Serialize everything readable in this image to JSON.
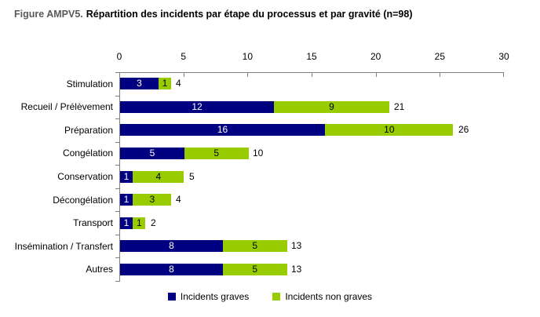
{
  "title": {
    "prefix": "Figure AMPV5.",
    "caption": "Répartition des incidents par étape du processus et par gravité (n=98)"
  },
  "colors": {
    "graves": "#000080",
    "non_graves": "#99CC00",
    "axis": "#808080",
    "title_prefix": "#595959",
    "text": "#000000"
  },
  "chart_data": {
    "type": "bar",
    "orientation": "horizontal",
    "stacked": true,
    "title": "Répartition des incidents par étape du processus et par gravité (n=98)",
    "categories": [
      "Stimulation",
      "Recueil / Prélèvement",
      "Préparation",
      "Congélation",
      "Conservation",
      "Décongélation",
      "Transport",
      "Insémination / Transfert",
      "Autres"
    ],
    "series": [
      {
        "name": "Incidents graves",
        "color": "#000080",
        "label_color": "#FFFFFF",
        "values": [
          3,
          12,
          16,
          5,
          1,
          1,
          1,
          8,
          8
        ]
      },
      {
        "name": "Incidents non graves",
        "color": "#99CC00",
        "label_color": "#000000",
        "values": [
          1,
          9,
          10,
          5,
          4,
          3,
          1,
          5,
          5
        ]
      }
    ],
    "totals": [
      4,
      21,
      26,
      10,
      5,
      4,
      2,
      13,
      13
    ],
    "xlim": [
      0,
      30
    ],
    "xticks": [
      0,
      5,
      10,
      15,
      20,
      25,
      30
    ],
    "value_labels": "inside",
    "grid": false,
    "legend_position": "bottom"
  },
  "legend": {
    "items": [
      {
        "label": "Incidents graves",
        "color": "#000080"
      },
      {
        "label": "Incidents non graves",
        "color": "#99CC00"
      }
    ]
  }
}
